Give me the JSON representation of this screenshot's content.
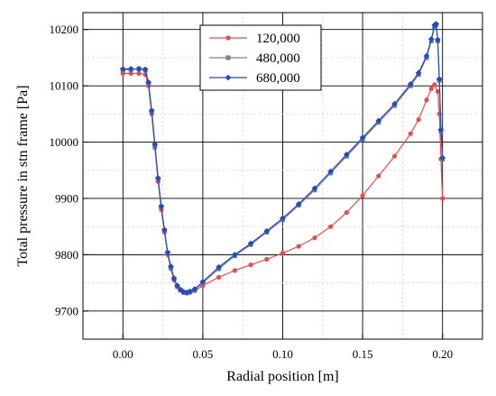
{
  "chart_data": {
    "type": "scatter",
    "xlabel": "Radial position [m]",
    "ylabel": "Total pressure in stn frame [Pa]",
    "xlim": [
      -0.025,
      0.225
    ],
    "ylim": [
      9650,
      10230
    ],
    "x_ticks": [
      0.0,
      0.05,
      0.1,
      0.15,
      0.2
    ],
    "x_tick_labels": [
      "0.00",
      "0.05",
      "0.10",
      "0.15",
      "0.20"
    ],
    "y_ticks": [
      9700,
      9800,
      9900,
      10000,
      10100,
      10200
    ],
    "y_tick_labels": [
      "9700",
      "9800",
      "9900",
      "10000",
      "10100",
      "10200"
    ],
    "grid": true,
    "legend_position": "top-center",
    "series": [
      {
        "name": "120,000",
        "color": "#f0484a",
        "marker": "circle",
        "x": [
          0.0,
          0.005,
          0.01,
          0.014,
          0.016,
          0.018,
          0.02,
          0.022,
          0.024,
          0.026,
          0.028,
          0.03,
          0.032,
          0.034,
          0.036,
          0.038,
          0.04,
          0.042,
          0.045,
          0.05,
          0.06,
          0.07,
          0.08,
          0.09,
          0.1,
          0.11,
          0.12,
          0.13,
          0.14,
          0.15,
          0.16,
          0.17,
          0.18,
          0.185,
          0.19,
          0.193,
          0.195,
          0.197,
          0.198,
          0.199,
          0.2
        ],
        "y": [
          10122,
          10122,
          10122,
          10120,
          10100,
          10050,
          9990,
          9930,
          9880,
          9840,
          9800,
          9775,
          9755,
          9743,
          9737,
          9733,
          9732,
          9733,
          9736,
          9745,
          9760,
          9772,
          9782,
          9792,
          9803,
          9815,
          9830,
          9850,
          9875,
          9905,
          9940,
          9975,
          10015,
          10040,
          10075,
          10095,
          10102,
          10090,
          10050,
          9970,
          9900
        ]
      },
      {
        "name": "480,000",
        "color": "#7f7f7f",
        "marker": "square",
        "x": [
          0.0,
          0.005,
          0.01,
          0.014,
          0.016,
          0.018,
          0.02,
          0.022,
          0.024,
          0.026,
          0.028,
          0.03,
          0.032,
          0.034,
          0.036,
          0.038,
          0.04,
          0.042,
          0.045,
          0.05,
          0.06,
          0.07,
          0.08,
          0.09,
          0.1,
          0.11,
          0.12,
          0.13,
          0.14,
          0.15,
          0.16,
          0.17,
          0.18,
          0.185,
          0.19,
          0.193,
          0.195,
          0.196,
          0.197,
          0.198,
          0.199,
          0.2
        ],
        "y": [
          10128,
          10129,
          10130,
          10128,
          10105,
          10055,
          9995,
          9935,
          9885,
          9843,
          9803,
          9778,
          9757,
          9744,
          9737,
          9733,
          9732,
          9734,
          9738,
          9750,
          9775,
          9798,
          9818,
          9840,
          9862,
          9888,
          9915,
          9945,
          9975,
          10005,
          10035,
          10065,
          10100,
          10120,
          10150,
          10180,
          10205,
          10208,
          10180,
          10110,
          10020,
          9970
        ]
      },
      {
        "name": "680,000",
        "color": "#1f4ec2",
        "marker": "diamond",
        "x": [
          0.0,
          0.005,
          0.01,
          0.014,
          0.016,
          0.018,
          0.02,
          0.022,
          0.024,
          0.026,
          0.028,
          0.03,
          0.032,
          0.034,
          0.036,
          0.038,
          0.04,
          0.042,
          0.045,
          0.05,
          0.06,
          0.07,
          0.08,
          0.09,
          0.1,
          0.11,
          0.12,
          0.13,
          0.14,
          0.15,
          0.16,
          0.17,
          0.18,
          0.185,
          0.19,
          0.193,
          0.195,
          0.196,
          0.197,
          0.198,
          0.199,
          0.2
        ],
        "y": [
          10130,
          10130,
          10130,
          10129,
          10106,
          10056,
          9996,
          9936,
          9886,
          9844,
          9804,
          9779,
          9758,
          9745,
          9738,
          9734,
          9733,
          9735,
          9739,
          9752,
          9778,
          9800,
          9820,
          9842,
          9865,
          9890,
          9918,
          9948,
          9978,
          10008,
          10038,
          10068,
          10103,
          10123,
          10153,
          10183,
          10208,
          10210,
          10182,
          10112,
          10022,
          9972
        ]
      }
    ]
  }
}
